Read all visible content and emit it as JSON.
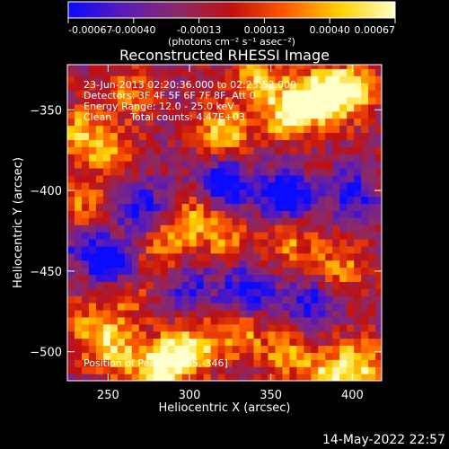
{
  "chart_data": {
    "type": "heatmap",
    "title": "Reconstructed RHESSI Image",
    "xlabel": "Heliocentric X (arcsec)",
    "ylabel": "Heliocentric Y (arcsec)",
    "xlim": [
      225,
      418
    ],
    "ylim": [
      -518,
      -322
    ],
    "x_ticks": [
      250,
      300,
      350,
      400
    ],
    "y_ticks": [
      -350,
      -400,
      -450,
      -500
    ],
    "colorbar": {
      "ticks": [
        "-0.00067",
        "-0.00040",
        "-0.00013",
        "0.00013",
        "0.00040",
        "0.00067"
      ],
      "unit_label": "(photons cm⁻² s⁻¹ asec⁻²)",
      "colormap": [
        "#0a0aff",
        "#5a1ab8",
        "#8a2a6a",
        "#c01010",
        "#ff5a00",
        "#ffd200",
        "#ffffc8"
      ]
    },
    "annotations": [
      "23-Jun-2013 02:20:36.000 to 02:23:52.000",
      "Detectors: 3F 4F 5F 6F 7F 8F, Att 0",
      "Energy Range: 12.0 - 25.0 keV",
      "Clean      Total counts: 4.47E+03"
    ],
    "peak_label": "Position of Peak = [385,-346]",
    "peak": [
      385,
      -346
    ],
    "timestamp": "14-May-2022 22:57",
    "hotspots": [
      {
        "x": 378,
        "y": -342,
        "v": 1.0
      },
      {
        "x": 398,
        "y": -338,
        "v": 0.95
      },
      {
        "x": 360,
        "y": -352,
        "v": 0.8
      },
      {
        "x": 322,
        "y": -362,
        "v": 0.7
      },
      {
        "x": 342,
        "y": -330,
        "v": 0.6
      },
      {
        "x": 232,
        "y": -362,
        "v": 0.55
      },
      {
        "x": 250,
        "y": -378,
        "v": 0.5
      },
      {
        "x": 262,
        "y": -340,
        "v": 0.45
      },
      {
        "x": 300,
        "y": -418,
        "v": 0.55
      },
      {
        "x": 322,
        "y": -428,
        "v": 0.45
      },
      {
        "x": 284,
        "y": -436,
        "v": 0.4
      },
      {
        "x": 362,
        "y": -432,
        "v": 0.45
      },
      {
        "x": 392,
        "y": -446,
        "v": 0.5
      },
      {
        "x": 234,
        "y": -412,
        "v": 0.45
      },
      {
        "x": 300,
        "y": -498,
        "v": 0.85
      },
      {
        "x": 282,
        "y": -510,
        "v": 0.9
      },
      {
        "x": 256,
        "y": -500,
        "v": 0.6
      },
      {
        "x": 330,
        "y": -490,
        "v": 0.55
      },
      {
        "x": 360,
        "y": -500,
        "v": 0.5
      },
      {
        "x": 240,
        "y": -486,
        "v": 0.55
      },
      {
        "x": 404,
        "y": -508,
        "v": 0.7
      },
      {
        "x": 384,
        "y": -516,
        "v": 0.6
      },
      {
        "x": 262,
        "y": -466,
        "v": 0.35
      },
      {
        "x": 242,
        "y": -448,
        "v": 0.35
      }
    ],
    "coldspots": [
      {
        "x": 358,
        "y": -402,
        "v": -0.9
      },
      {
        "x": 322,
        "y": -396,
        "v": -0.7
      },
      {
        "x": 250,
        "y": -446,
        "v": -0.85
      },
      {
        "x": 272,
        "y": -410,
        "v": -0.6
      },
      {
        "x": 336,
        "y": -462,
        "v": -0.7
      },
      {
        "x": 300,
        "y": -460,
        "v": -0.5
      },
      {
        "x": 400,
        "y": -402,
        "v": -0.6
      },
      {
        "x": 372,
        "y": -470,
        "v": -0.55
      },
      {
        "x": 236,
        "y": -435,
        "v": -0.5
      }
    ]
  }
}
